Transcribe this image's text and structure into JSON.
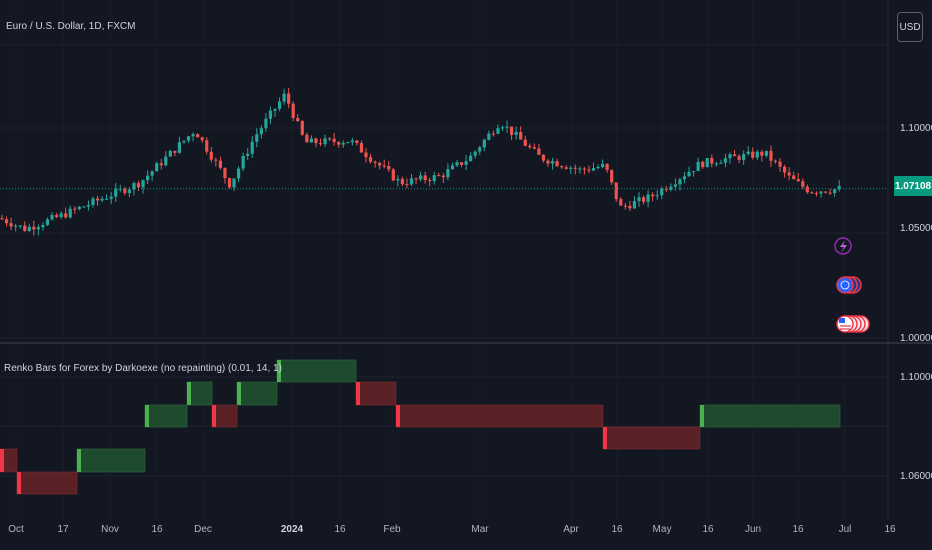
{
  "header": {
    "symbol_title": "Euro / U.S. Dollar, 1D, FXCM",
    "currency_button": "USD"
  },
  "price_pane": {
    "last_price": "1.07108",
    "y_ticks": [
      {
        "label": "1.10000",
        "value": 1.1
      },
      {
        "label": "1.05000",
        "value": 1.05
      },
      {
        "label": "1.00000",
        "value": 1.0
      }
    ],
    "last_price_value": 1.07108,
    "colors": {
      "up": "#26a69a",
      "down": "#ef5350",
      "price_line": "#089981"
    }
  },
  "indicator_pane": {
    "title": "Renko Bars for Forex by Darkoexe (no repainting) (0.01, 14, 1)",
    "y_ticks": [
      {
        "label": "1.10000",
        "value": 1.1
      },
      {
        "label": "1.06000",
        "value": 1.06
      }
    ],
    "colors": {
      "up_box": "#1e4a2e",
      "up_edge": "#4caf50",
      "down_box": "#5a2226",
      "down_edge": "#f23645"
    }
  },
  "x_axis": {
    "labels": [
      {
        "text": "Oct",
        "bold": false
      },
      {
        "text": "17",
        "bold": false
      },
      {
        "text": "Nov",
        "bold": false
      },
      {
        "text": "16",
        "bold": false
      },
      {
        "text": "Dec",
        "bold": false
      },
      {
        "text": "2024",
        "bold": true
      },
      {
        "text": "16",
        "bold": false
      },
      {
        "text": "Feb",
        "bold": false
      },
      {
        "text": "Mar",
        "bold": false
      },
      {
        "text": "Apr",
        "bold": false
      },
      {
        "text": "16",
        "bold": false
      },
      {
        "text": "May",
        "bold": false
      },
      {
        "text": "16",
        "bold": false
      },
      {
        "text": "Jun",
        "bold": false
      },
      {
        "text": "16",
        "bold": false
      },
      {
        "text": "Jul",
        "bold": false
      },
      {
        "text": "16",
        "bold": false
      }
    ]
  },
  "markers": [
    "lightning-icon",
    "globe-icon",
    "us-flag-icon"
  ]
}
